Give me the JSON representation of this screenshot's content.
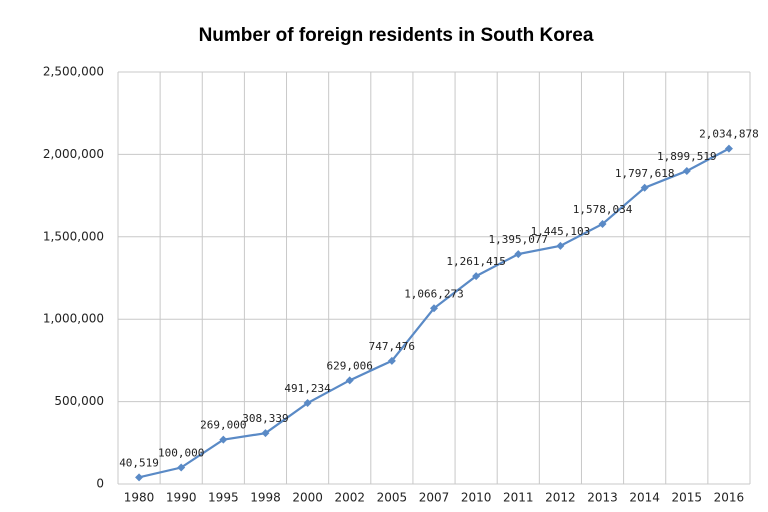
{
  "chart_data": {
    "type": "line",
    "title": "Number of foreign residents in South Korea",
    "categories": [
      "1980",
      "1990",
      "1995",
      "1998",
      "2000",
      "2002",
      "2005",
      "2007",
      "2010",
      "2011",
      "2012",
      "2013",
      "2014",
      "2015",
      "2016"
    ],
    "series": [
      {
        "color": "#5a8ac6",
        "values": [
          40519,
          100000,
          269000,
          308339,
          491234,
          629006,
          747476,
          1066273,
          1261415,
          1395077,
          1445103,
          1578034,
          1797618,
          1899519,
          2034878
        ],
        "value_labels": [
          "40,519",
          "100,000",
          "269,000",
          "308,339",
          "491,234",
          "629,006",
          "747,476",
          "1,066,273",
          "1,261,415",
          "1,395,077",
          "1,445,103",
          "1,578,034",
          "1,797,618",
          "1,899,519",
          "2,034,878"
        ]
      }
    ],
    "ylim": [
      0,
      2500000
    ],
    "yticks": [
      0,
      {
        "value": 500000,
        "label": "500,000"
      },
      {
        "value": 1000000,
        "label": "1,000,000"
      },
      {
        "value": 1500000,
        "label": "1,500,000"
      },
      {
        "value": 2000000,
        "label": "2,000,000"
      },
      {
        "value": 2500000,
        "label": "2,500,000"
      }
    ],
    "grid": true
  }
}
